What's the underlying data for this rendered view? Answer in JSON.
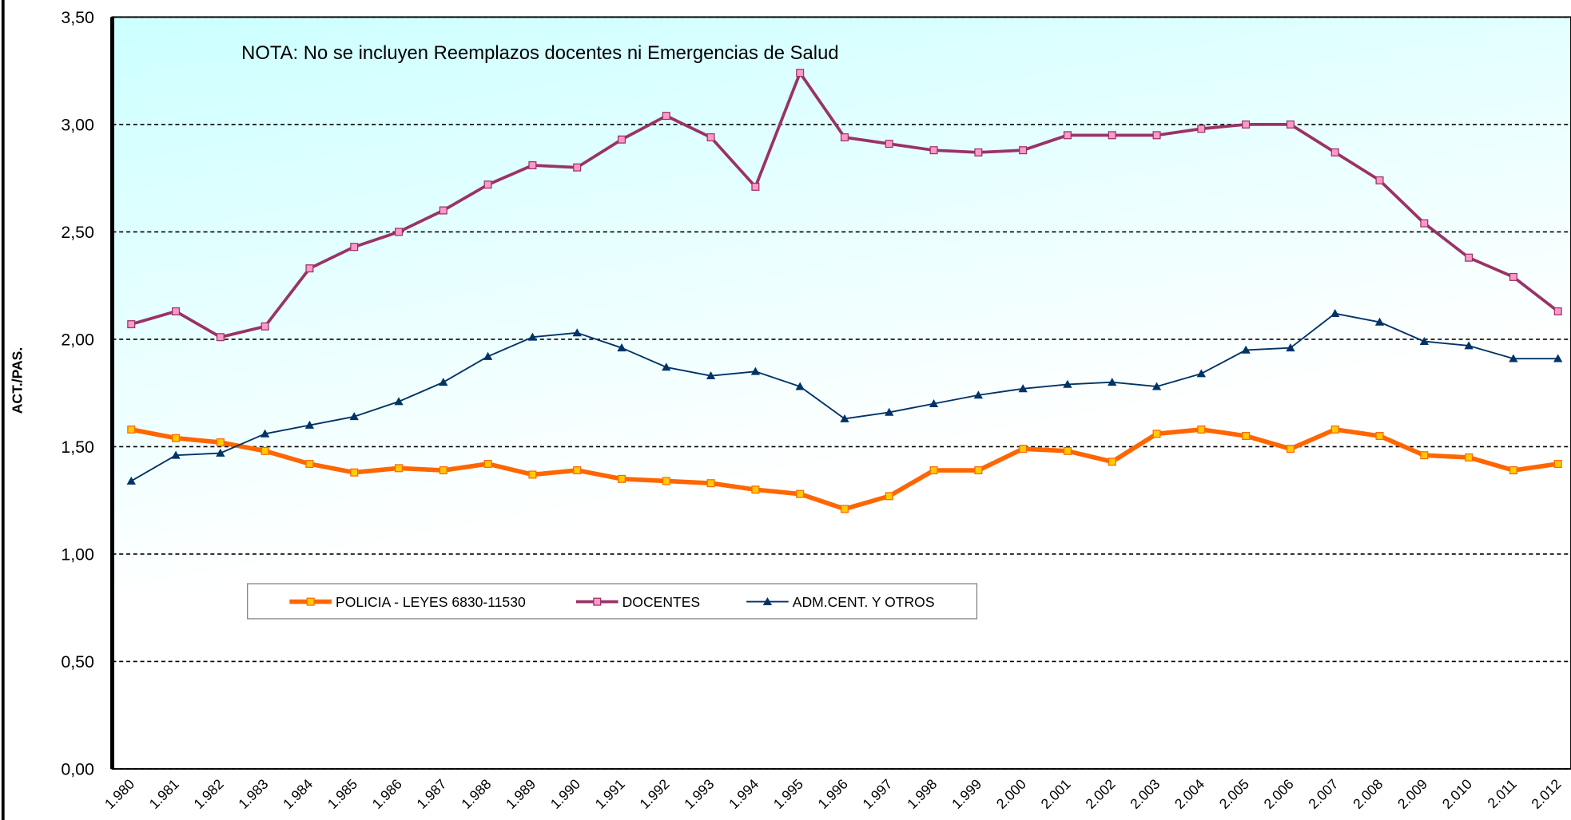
{
  "chart_data": {
    "type": "line",
    "annotation": "NOTA: No se incluyen Reemplazos docentes ni Emergencias  de Salud",
    "y_label": "ACT./PAS.",
    "categories": [
      "1.980",
      "1.981",
      "1.982",
      "1.983",
      "1.984",
      "1.985",
      "1.986",
      "1.987",
      "1.988",
      "1.989",
      "1.990",
      "1.991",
      "1.992",
      "1.993",
      "1.994",
      "1.995",
      "1.996",
      "1.997",
      "1.998",
      "1.999",
      "2.000",
      "2.001",
      "2.002",
      "2.003",
      "2.004",
      "2.005",
      "2.006",
      "2.007",
      "2.008",
      "2.009",
      "2.010",
      "2.011",
      "2.012"
    ],
    "series": [
      {
        "name": "POLICIA - LEYES 6830-11530",
        "color": "#ff6600",
        "marker_color": "#ffcc00",
        "marker": "square",
        "values": [
          1.58,
          1.54,
          1.52,
          1.48,
          1.42,
          1.38,
          1.4,
          1.39,
          1.42,
          1.37,
          1.39,
          1.35,
          1.34,
          1.33,
          1.3,
          1.28,
          1.21,
          1.27,
          1.39,
          1.39,
          1.49,
          1.48,
          1.43,
          1.56,
          1.58,
          1.55,
          1.49,
          1.58,
          1.55,
          1.46,
          1.45,
          1.39,
          1.42
        ]
      },
      {
        "name": "DOCENTES",
        "color": "#993366",
        "marker_color": "#ff99cc",
        "marker": "square",
        "values": [
          2.07,
          2.13,
          2.01,
          2.06,
          2.33,
          2.43,
          2.5,
          2.6,
          2.72,
          2.81,
          2.8,
          2.93,
          3.04,
          2.94,
          2.71,
          3.24,
          2.94,
          2.91,
          2.88,
          2.87,
          2.88,
          2.95,
          2.95,
          2.95,
          2.98,
          3.0,
          3.0,
          2.87,
          2.74,
          2.54,
          2.38,
          2.29,
          2.13
        ]
      },
      {
        "name": "ADM.CENT. Y OTROS",
        "color": "#003366",
        "marker_color": "#003366",
        "marker": "triangle",
        "values": [
          1.34,
          1.46,
          1.47,
          1.56,
          1.6,
          1.64,
          1.71,
          1.8,
          1.92,
          2.01,
          2.03,
          1.96,
          1.87,
          1.83,
          1.85,
          1.78,
          1.63,
          1.66,
          1.7,
          1.74,
          1.77,
          1.79,
          1.8,
          1.78,
          1.84,
          1.95,
          1.96,
          2.12,
          2.08,
          1.99,
          1.97,
          1.91,
          1.91
        ]
      }
    ],
    "ylim": [
      0,
      3.5
    ],
    "yticks": [
      {
        "value": 0,
        "label": "0,00"
      },
      {
        "value": 0.5,
        "label": "0,50"
      },
      {
        "value": 1,
        "label": "1,00"
      },
      {
        "value": 1.5,
        "label": "1,50"
      },
      {
        "value": 2,
        "label": "2,00"
      },
      {
        "value": 2.5,
        "label": "2,50"
      },
      {
        "value": 3,
        "label": "3,00"
      },
      {
        "value": 3.5,
        "label": "3,50"
      }
    ],
    "grid": true
  }
}
